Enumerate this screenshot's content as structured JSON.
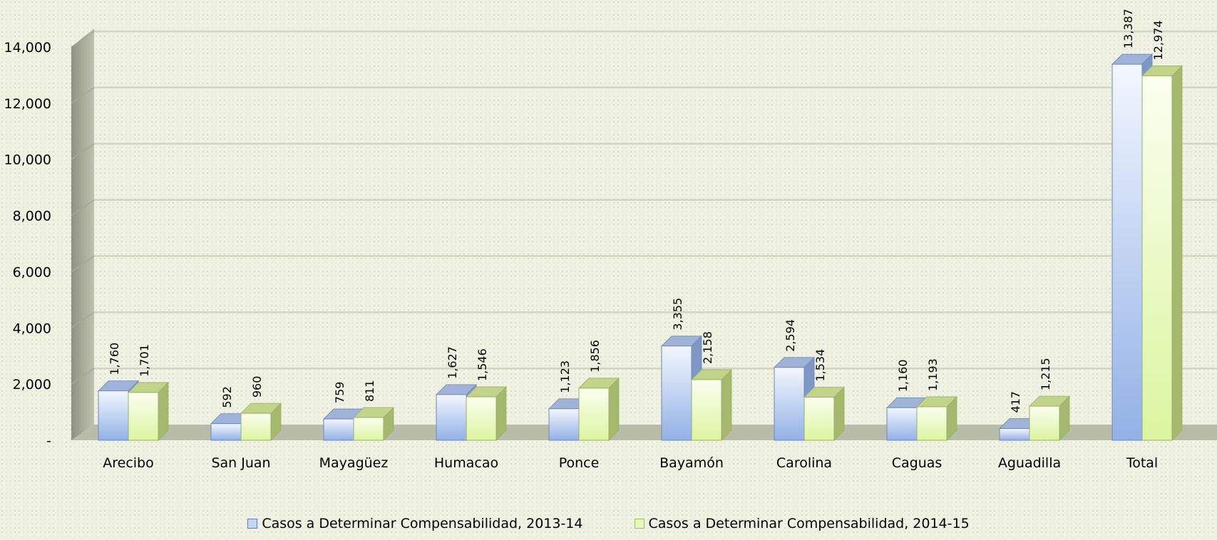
{
  "chart_data": {
    "type": "bar",
    "categories": [
      "Arecibo",
      "San Juan",
      "Mayagüez",
      "Humacao",
      "Ponce",
      "Bayamón",
      "Carolina",
      "Caguas",
      "Aguadilla",
      "Total"
    ],
    "series": [
      {
        "name": "Casos a Determinar Compensabilidad, 2013-14",
        "values": [
          1760,
          592,
          759,
          1627,
          1123,
          3355,
          2594,
          1160,
          417,
          13387
        ],
        "labels": [
          "1,760",
          "592",
          "759",
          "1,627",
          "1,123",
          "3,355",
          "2,594",
          "1,160",
          "417",
          "13,387"
        ],
        "color": "#c5d6f4"
      },
      {
        "name": "Casos a Determinar Compensabilidad, 2014-15",
        "values": [
          1701,
          960,
          811,
          1546,
          1856,
          2158,
          1534,
          1193,
          1215,
          12974
        ],
        "labels": [
          "1,701",
          "960",
          "811",
          "1,546",
          "1,856",
          "2,158",
          "1,534",
          "1,193",
          "1,215",
          "12,974"
        ],
        "color": "#eaf9b9"
      }
    ],
    "y_ticks": [
      0,
      2000,
      4000,
      6000,
      8000,
      10000,
      12000,
      14000
    ],
    "y_tick_labels": [
      "-",
      "2,000",
      "4,000",
      "6,000",
      "8,000",
      "10,000",
      "12,000",
      "14,000"
    ],
    "ylim": [
      0,
      14000
    ],
    "grid": true,
    "legend_position": "bottom",
    "title": "",
    "xlabel": "",
    "ylabel": ""
  }
}
